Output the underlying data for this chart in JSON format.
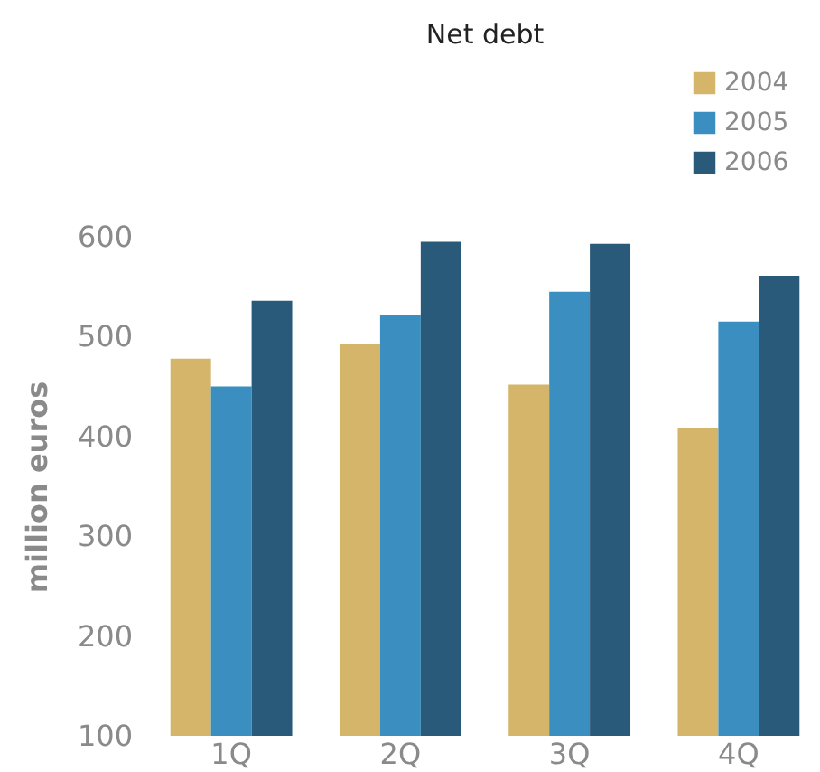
{
  "chart_data": {
    "type": "bar",
    "title": "Net debt",
    "ylabel": "million euros",
    "categories": [
      "1Q",
      "2Q",
      "3Q",
      "4Q"
    ],
    "series": [
      {
        "name": "2004",
        "color": "#d4b56a",
        "values": [
          478,
          493,
          452,
          408
        ]
      },
      {
        "name": "2005",
        "color": "#3a8fc0",
        "values": [
          450,
          522,
          545,
          515
        ]
      },
      {
        "name": "2006",
        "color": "#2a5a7a",
        "values": [
          536,
          595,
          593,
          561
        ]
      }
    ],
    "ylim": [
      100,
      600
    ],
    "yticks": [
      100,
      200,
      300,
      400,
      500,
      600
    ],
    "grid": false,
    "legend": "top right"
  }
}
